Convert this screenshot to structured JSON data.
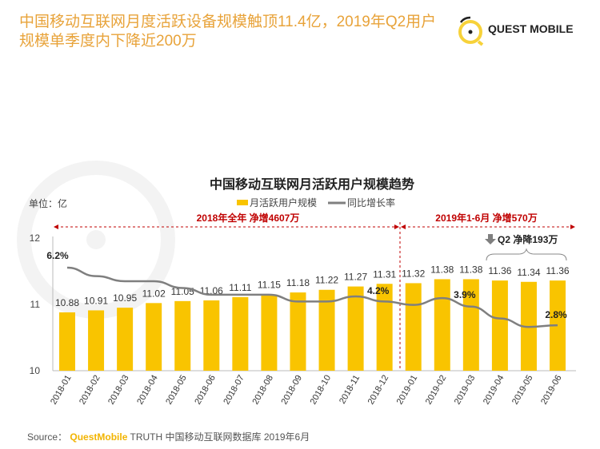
{
  "title": "中国移动互联网月度活跃设备规模触顶11.4亿，2019年Q2用户规模单季度内下降近200万",
  "logo": {
    "text": "QUEST MOBILE"
  },
  "watermark": "QUESTMOBILE",
  "source": {
    "label": "Source：",
    "brand": "QuestMobile",
    "text": "TRUTH 中国移动互联网数据库 2019年6月"
  },
  "chart_data": {
    "type": "bar+line",
    "title": "中国移动互联网月活跃用户规模趋势",
    "unit_label": "单位：亿",
    "categories": [
      "2018-01",
      "2018-02",
      "2018-03",
      "2018-04",
      "2018-05",
      "2018-06",
      "2018-07",
      "2018-08",
      "2018-09",
      "2018-10",
      "2018-11",
      "2018-12",
      "2019-01",
      "2019-02",
      "2019-03",
      "2019-04",
      "2019-05",
      "2019-06"
    ],
    "ylim": [
      10,
      12
    ],
    "yticks": [
      "10",
      "11",
      "12"
    ],
    "legend_position": "top-center",
    "series": [
      {
        "name": "月活跃用户规模",
        "type": "bar",
        "color": "#f9c400",
        "values": [
          10.88,
          10.91,
          10.95,
          11.02,
          11.05,
          11.06,
          11.11,
          11.15,
          11.18,
          11.22,
          11.27,
          11.31,
          11.32,
          11.38,
          11.38,
          11.36,
          11.34,
          11.36
        ],
        "labels": [
          "10.88",
          "10.91",
          "10.95",
          "11.02",
          "11.05",
          "11.06",
          "11.11",
          "11.15",
          "11.18",
          "11.22",
          "11.27",
          "11.31",
          "11.32",
          "11.38",
          "11.38",
          "11.36",
          "11.34",
          "11.36"
        ]
      },
      {
        "name": "同比增长率",
        "type": "line",
        "color": "#7f7f7f",
        "unit": "%",
        "values": [
          6.2,
          5.7,
          5.4,
          5.4,
          5.0,
          4.6,
          4.6,
          4.6,
          4.2,
          4.2,
          4.5,
          4.2,
          4.0,
          4.4,
          3.9,
          3.2,
          2.7,
          2.8
        ],
        "labels": [
          {
            "index": 0,
            "text": "6.2%"
          },
          {
            "index": 11,
            "text": "4.2%"
          },
          {
            "index": 14,
            "text": "3.9%"
          },
          {
            "index": 17,
            "text": "2.8%"
          }
        ]
      }
    ],
    "annotations": {
      "period_2018": "2018年全年 净增4607万",
      "period_2019": "2019年1-6月 净增570万",
      "q2": "Q2 净降193万"
    }
  }
}
